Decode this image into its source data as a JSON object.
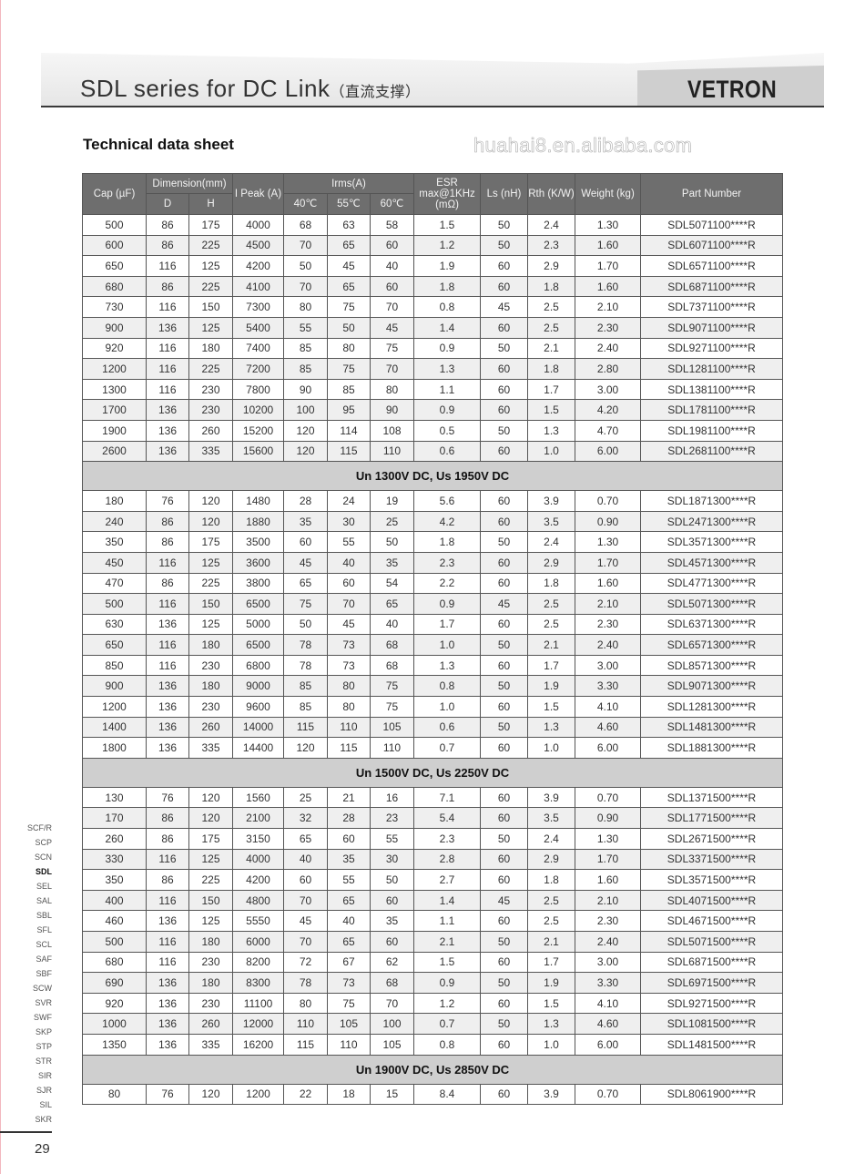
{
  "header": {
    "title": "SDL  series  for  DC  Link",
    "title_cn": "（直流支撑）",
    "brand": "VETRON"
  },
  "subtitle": "Technical data sheet",
  "table": {
    "headers": {
      "cap": "Cap (µF)",
      "dimension": "Dimension(mm)",
      "d": "D",
      "h": "H",
      "ipeak": "I Peak (A)",
      "irms": "Irms(A)",
      "t40": "40℃",
      "t55": "55℃",
      "t60": "60℃",
      "esr": "ESR max@1KHz (mΩ)",
      "ls": "Ls (nH)",
      "rth": "Rth (K/W)",
      "weight": "Weight (kg)",
      "part": "Part Number"
    },
    "sections": [
      {
        "title": "",
        "rows": [
          [
            "500",
            "86",
            "175",
            "4000",
            "68",
            "63",
            "58",
            "1.5",
            "50",
            "2.4",
            "1.30",
            "SDL5071100****R"
          ],
          [
            "600",
            "86",
            "225",
            "4500",
            "70",
            "65",
            "60",
            "1.2",
            "50",
            "2.3",
            "1.60",
            "SDL6071100****R"
          ],
          [
            "650",
            "116",
            "125",
            "4200",
            "50",
            "45",
            "40",
            "1.9",
            "60",
            "2.9",
            "1.70",
            "SDL6571100****R"
          ],
          [
            "680",
            "86",
            "225",
            "4100",
            "70",
            "65",
            "60",
            "1.8",
            "60",
            "1.8",
            "1.60",
            "SDL6871100****R"
          ],
          [
            "730",
            "116",
            "150",
            "7300",
            "80",
            "75",
            "70",
            "0.8",
            "45",
            "2.5",
            "2.10",
            "SDL7371100****R"
          ],
          [
            "900",
            "136",
            "125",
            "5400",
            "55",
            "50",
            "45",
            "1.4",
            "60",
            "2.5",
            "2.30",
            "SDL9071100****R"
          ],
          [
            "920",
            "116",
            "180",
            "7400",
            "85",
            "80",
            "75",
            "0.9",
            "50",
            "2.1",
            "2.40",
            "SDL9271100****R"
          ],
          [
            "1200",
            "116",
            "225",
            "7200",
            "85",
            "75",
            "70",
            "1.3",
            "60",
            "1.8",
            "2.80",
            "SDL1281100****R"
          ],
          [
            "1300",
            "116",
            "230",
            "7800",
            "90",
            "85",
            "80",
            "1.1",
            "60",
            "1.7",
            "3.00",
            "SDL1381100****R"
          ],
          [
            "1700",
            "136",
            "230",
            "10200",
            "100",
            "95",
            "90",
            "0.9",
            "60",
            "1.5",
            "4.20",
            "SDL1781100****R"
          ],
          [
            "1900",
            "136",
            "260",
            "15200",
            "120",
            "114",
            "108",
            "0.5",
            "50",
            "1.3",
            "4.70",
            "SDL1981100****R"
          ],
          [
            "2600",
            "136",
            "335",
            "15600",
            "120",
            "115",
            "110",
            "0.6",
            "60",
            "1.0",
            "6.00",
            "SDL2681100****R"
          ]
        ]
      },
      {
        "title": "Un 1300V DC, Us 1950V DC",
        "rows": [
          [
            "180",
            "76",
            "120",
            "1480",
            "28",
            "24",
            "19",
            "5.6",
            "60",
            "3.9",
            "0.70",
            "SDL1871300****R"
          ],
          [
            "240",
            "86",
            "120",
            "1880",
            "35",
            "30",
            "25",
            "4.2",
            "60",
            "3.5",
            "0.90",
            "SDL2471300****R"
          ],
          [
            "350",
            "86",
            "175",
            "3500",
            "60",
            "55",
            "50",
            "1.8",
            "50",
            "2.4",
            "1.30",
            "SDL3571300****R"
          ],
          [
            "450",
            "116",
            "125",
            "3600",
            "45",
            "40",
            "35",
            "2.3",
            "60",
            "2.9",
            "1.70",
            "SDL4571300****R"
          ],
          [
            "470",
            "86",
            "225",
            "3800",
            "65",
            "60",
            "54",
            "2.2",
            "60",
            "1.8",
            "1.60",
            "SDL4771300****R"
          ],
          [
            "500",
            "116",
            "150",
            "6500",
            "75",
            "70",
            "65",
            "0.9",
            "45",
            "2.5",
            "2.10",
            "SDL5071300****R"
          ],
          [
            "630",
            "136",
            "125",
            "5000",
            "50",
            "45",
            "40",
            "1.7",
            "60",
            "2.5",
            "2.30",
            "SDL6371300****R"
          ],
          [
            "650",
            "116",
            "180",
            "6500",
            "78",
            "73",
            "68",
            "1.0",
            "50",
            "2.1",
            "2.40",
            "SDL6571300****R"
          ],
          [
            "850",
            "116",
            "230",
            "6800",
            "78",
            "73",
            "68",
            "1.3",
            "60",
            "1.7",
            "3.00",
            "SDL8571300****R"
          ],
          [
            "900",
            "136",
            "180",
            "9000",
            "85",
            "80",
            "75",
            "0.8",
            "50",
            "1.9",
            "3.30",
            "SDL9071300****R"
          ],
          [
            "1200",
            "136",
            "230",
            "9600",
            "85",
            "80",
            "75",
            "1.0",
            "60",
            "1.5",
            "4.10",
            "SDL1281300****R"
          ],
          [
            "1400",
            "136",
            "260",
            "14000",
            "115",
            "110",
            "105",
            "0.6",
            "50",
            "1.3",
            "4.60",
            "SDL1481300****R"
          ],
          [
            "1800",
            "136",
            "335",
            "14400",
            "120",
            "115",
            "110",
            "0.7",
            "60",
            "1.0",
            "6.00",
            "SDL1881300****R"
          ]
        ]
      },
      {
        "title": "Un 1500V DC, Us 2250V DC",
        "rows": [
          [
            "130",
            "76",
            "120",
            "1560",
            "25",
            "21",
            "16",
            "7.1",
            "60",
            "3.9",
            "0.70",
            "SDL1371500****R"
          ],
          [
            "170",
            "86",
            "120",
            "2100",
            "32",
            "28",
            "23",
            "5.4",
            "60",
            "3.5",
            "0.90",
            "SDL1771500****R"
          ],
          [
            "260",
            "86",
            "175",
            "3150",
            "65",
            "60",
            "55",
            "2.3",
            "50",
            "2.4",
            "1.30",
            "SDL2671500****R"
          ],
          [
            "330",
            "116",
            "125",
            "4000",
            "40",
            "35",
            "30",
            "2.8",
            "60",
            "2.9",
            "1.70",
            "SDL3371500****R"
          ],
          [
            "350",
            "86",
            "225",
            "4200",
            "60",
            "55",
            "50",
            "2.7",
            "60",
            "1.8",
            "1.60",
            "SDL3571500****R"
          ],
          [
            "400",
            "116",
            "150",
            "4800",
            "70",
            "65",
            "60",
            "1.4",
            "45",
            "2.5",
            "2.10",
            "SDL4071500****R"
          ],
          [
            "460",
            "136",
            "125",
            "5550",
            "45",
            "40",
            "35",
            "1.1",
            "60",
            "2.5",
            "2.30",
            "SDL4671500****R"
          ],
          [
            "500",
            "116",
            "180",
            "6000",
            "70",
            "65",
            "60",
            "2.1",
            "50",
            "2.1",
            "2.40",
            "SDL5071500****R"
          ],
          [
            "680",
            "116",
            "230",
            "8200",
            "72",
            "67",
            "62",
            "1.5",
            "60",
            "1.7",
            "3.00",
            "SDL6871500****R"
          ],
          [
            "690",
            "136",
            "180",
            "8300",
            "78",
            "73",
            "68",
            "0.9",
            "50",
            "1.9",
            "3.30",
            "SDL6971500****R"
          ],
          [
            "920",
            "136",
            "230",
            "11100",
            "80",
            "75",
            "70",
            "1.2",
            "60",
            "1.5",
            "4.10",
            "SDL9271500****R"
          ],
          [
            "1000",
            "136",
            "260",
            "12000",
            "110",
            "105",
            "100",
            "0.7",
            "50",
            "1.3",
            "4.60",
            "SDL1081500****R"
          ],
          [
            "1350",
            "136",
            "335",
            "16200",
            "115",
            "110",
            "105",
            "0.8",
            "60",
            "1.0",
            "6.00",
            "SDL1481500****R"
          ]
        ]
      },
      {
        "title": "Un 1900V DC, Us 2850V DC",
        "rows": [
          [
            "80",
            "76",
            "120",
            "1200",
            "22",
            "18",
            "15",
            "8.4",
            "60",
            "3.9",
            "0.70",
            "SDL8061900****R"
          ]
        ]
      }
    ]
  },
  "watermark": "huahai8.en.alibaba.com",
  "series_nav": {
    "items": [
      "SCF/R",
      "SCP",
      "SCN",
      "SDL",
      "SEL",
      "SAL",
      "SBL",
      "SFL",
      "SCL",
      "SAF",
      "SBF",
      "SCW",
      "SVR",
      "SWF",
      "SKP",
      "STP",
      "STR",
      "SIR",
      "SJR",
      "SIL",
      "SKR"
    ],
    "active": "SDL"
  },
  "page_number": "29"
}
